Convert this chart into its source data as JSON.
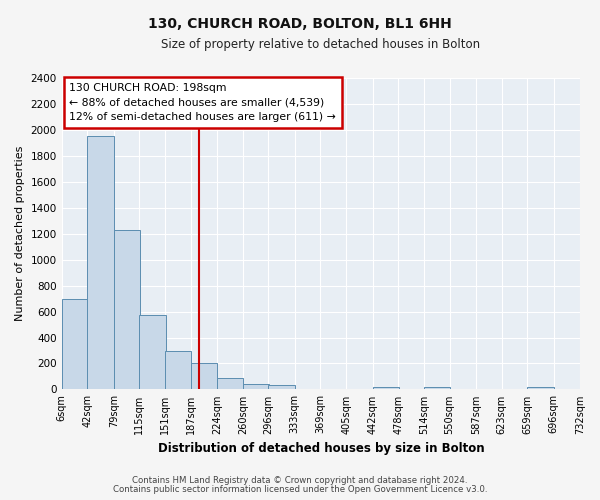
{
  "title": "130, CHURCH ROAD, BOLTON, BL1 6HH",
  "subtitle": "Size of property relative to detached houses in Bolton",
  "xlabel": "Distribution of detached houses by size in Bolton",
  "ylabel": "Number of detached properties",
  "bar_left_edges": [
    6,
    42,
    79,
    115,
    151,
    187,
    224,
    260,
    296,
    333,
    369,
    405,
    442,
    478,
    514,
    550,
    587,
    623,
    659,
    696
  ],
  "bar_heights": [
    700,
    1950,
    1230,
    575,
    300,
    200,
    85,
    45,
    35,
    0,
    0,
    0,
    20,
    0,
    15,
    0,
    0,
    0,
    20,
    0
  ],
  "bin_width": 37,
  "tick_labels": [
    "6sqm",
    "42sqm",
    "79sqm",
    "115sqm",
    "151sqm",
    "187sqm",
    "224sqm",
    "260sqm",
    "296sqm",
    "333sqm",
    "369sqm",
    "405sqm",
    "442sqm",
    "478sqm",
    "514sqm",
    "550sqm",
    "587sqm",
    "623sqm",
    "659sqm",
    "696sqm",
    "732sqm"
  ],
  "bar_color": "#c8d8e8",
  "bar_edge_color": "#5b8db0",
  "vline_x": 198,
  "vline_color": "#cc0000",
  "ylim": [
    0,
    2400
  ],
  "yticks": [
    0,
    200,
    400,
    600,
    800,
    1000,
    1200,
    1400,
    1600,
    1800,
    2000,
    2200,
    2400
  ],
  "annotation_title": "130 CHURCH ROAD: 198sqm",
  "annotation_line1": "← 88% of detached houses are smaller (4,539)",
  "annotation_line2": "12% of semi-detached houses are larger (611) →",
  "annotation_box_color": "#ffffff",
  "annotation_box_edge": "#cc0000",
  "footnote1": "Contains HM Land Registry data © Crown copyright and database right 2024.",
  "footnote2": "Contains public sector information licensed under the Open Government Licence v3.0.",
  "plot_bg_color": "#e8eef4",
  "fig_bg_color": "#f5f5f5",
  "grid_color": "#ffffff"
}
